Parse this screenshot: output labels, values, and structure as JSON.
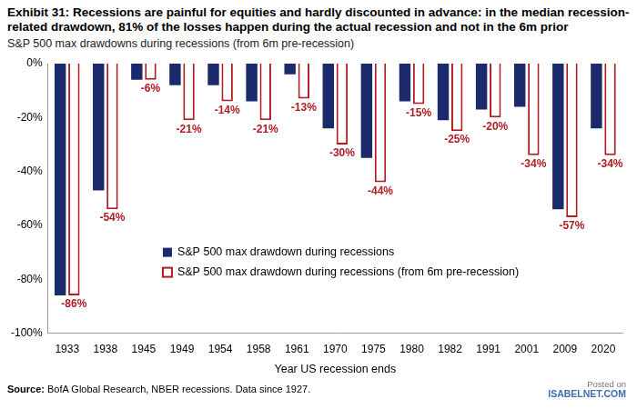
{
  "chart_data": {
    "type": "bar",
    "title": "Exhibit 31: Recessions are painful for equities and hardly discounted  in advance: in the median recession-related drawdown, 81% of the losses happen during the actual recession and not in the 6m prior",
    "subtitle": "S&P 500 max drawdowns during recessions (from 6m pre-recession)",
    "x_label": "Year US recession ends",
    "source": "Source: BofA Global Research, NBER recessions. Data since 1927.",
    "annotations": [
      "Posted on",
      "ISABELNET.COM"
    ],
    "categories": [
      "1933",
      "1938",
      "1945",
      "1949",
      "1954",
      "1958",
      "1961",
      "1970",
      "1975",
      "1980",
      "1982",
      "1991",
      "2001",
      "2009",
      "2020"
    ],
    "series": [
      {
        "name": "S&P 500 max drawdown during recessions",
        "color": "#1b2a6b",
        "marker": "filled",
        "values": [
          -86,
          -47,
          -6,
          -8,
          -8,
          -14,
          -4,
          -24,
          -35,
          -14,
          -21,
          -17,
          -16,
          -54,
          -24
        ]
      },
      {
        "name": "S&P 500 max drawdown during recessions (from 6m pre-recession)",
        "color": "#b01c22",
        "marker": "hollow",
        "data_labels": true,
        "values": [
          -86,
          -54,
          -6,
          -21,
          -14,
          -21,
          -13,
          -30,
          -44,
          -15,
          -25,
          -20,
          -34,
          -57,
          -34
        ],
        "value_labels": [
          "-86%",
          "-54%",
          "-6%",
          "-21%",
          "-14%",
          "-21%",
          "-13%",
          "-30%",
          "-44%",
          "-15%",
          "-25%",
          "-20%",
          "-34%",
          "-57%",
          "-34%"
        ]
      }
    ],
    "ylim": [
      -100,
      0
    ],
    "yticks": [
      {
        "value": -100,
        "label": "-100%"
      },
      {
        "value": -80,
        "label": "-80%"
      },
      {
        "value": -60,
        "label": "-60%"
      },
      {
        "value": -40,
        "label": "-40%"
      },
      {
        "value": -20,
        "label": "-20%"
      },
      {
        "value": 0,
        "label": "0%"
      }
    ],
    "grid": false,
    "legend": "lower center"
  }
}
